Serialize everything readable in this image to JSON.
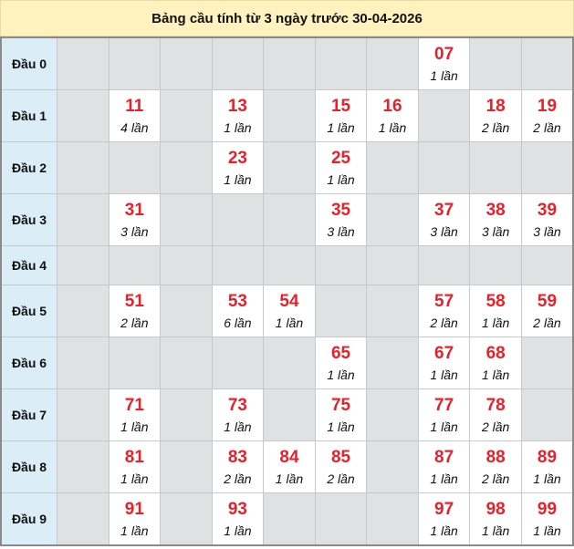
{
  "title": "Bảng cầu tính từ 3 ngày trước 30-04-2026",
  "colors": {
    "number": "#e8202a",
    "label_bg": "#dbeef8",
    "empty_bg": "#e0e1e3",
    "title_bg": "#fff2bf"
  },
  "rows": [
    {
      "label": "Đầu 0",
      "cells": [
        null,
        null,
        null,
        null,
        null,
        null,
        null,
        {
          "num": "07",
          "count": "1 lần"
        },
        null,
        null
      ]
    },
    {
      "label": "Đầu 1",
      "cells": [
        null,
        {
          "num": "11",
          "count": "4 lần"
        },
        null,
        {
          "num": "13",
          "count": "1 lần"
        },
        null,
        {
          "num": "15",
          "count": "1 lần"
        },
        {
          "num": "16",
          "count": "1 lần"
        },
        null,
        {
          "num": "18",
          "count": "2 lần"
        },
        {
          "num": "19",
          "count": "2 lần"
        }
      ]
    },
    {
      "label": "Đầu 2",
      "cells": [
        null,
        null,
        null,
        {
          "num": "23",
          "count": "1 lần"
        },
        null,
        {
          "num": "25",
          "count": "1 lần"
        },
        null,
        null,
        null,
        null
      ]
    },
    {
      "label": "Đầu 3",
      "cells": [
        null,
        {
          "num": "31",
          "count": "3 lần"
        },
        null,
        null,
        null,
        {
          "num": "35",
          "count": "3 lần"
        },
        null,
        {
          "num": "37",
          "count": "3 lần"
        },
        {
          "num": "38",
          "count": "3 lần"
        },
        {
          "num": "39",
          "count": "3 lần"
        }
      ]
    },
    {
      "label": "Đầu 4",
      "cells": [
        null,
        null,
        null,
        null,
        null,
        null,
        null,
        null,
        null,
        null
      ]
    },
    {
      "label": "Đầu 5",
      "cells": [
        null,
        {
          "num": "51",
          "count": "2 lần"
        },
        null,
        {
          "num": "53",
          "count": "6 lần"
        },
        {
          "num": "54",
          "count": "1 lần"
        },
        null,
        null,
        {
          "num": "57",
          "count": "2 lần"
        },
        {
          "num": "58",
          "count": "1 lần"
        },
        {
          "num": "59",
          "count": "2 lần"
        }
      ]
    },
    {
      "label": "Đầu 6",
      "cells": [
        null,
        null,
        null,
        null,
        null,
        {
          "num": "65",
          "count": "1 lần"
        },
        null,
        {
          "num": "67",
          "count": "1 lần"
        },
        {
          "num": "68",
          "count": "1 lần"
        },
        null
      ]
    },
    {
      "label": "Đầu 7",
      "cells": [
        null,
        {
          "num": "71",
          "count": "1 lần"
        },
        null,
        {
          "num": "73",
          "count": "1 lần"
        },
        null,
        {
          "num": "75",
          "count": "1 lần"
        },
        null,
        {
          "num": "77",
          "count": "1 lần"
        },
        {
          "num": "78",
          "count": "2 lần"
        },
        null
      ]
    },
    {
      "label": "Đầu 8",
      "cells": [
        null,
        {
          "num": "81",
          "count": "1 lần"
        },
        null,
        {
          "num": "83",
          "count": "2 lần"
        },
        {
          "num": "84",
          "count": "1 lần"
        },
        {
          "num": "85",
          "count": "2 lần"
        },
        null,
        {
          "num": "87",
          "count": "1 lần"
        },
        {
          "num": "88",
          "count": "2 lần"
        },
        {
          "num": "89",
          "count": "1 lần"
        }
      ]
    },
    {
      "label": "Đầu 9",
      "cells": [
        null,
        {
          "num": "91",
          "count": "1 lần"
        },
        null,
        {
          "num": "93",
          "count": "1 lần"
        },
        null,
        null,
        null,
        {
          "num": "97",
          "count": "1 lần"
        },
        {
          "num": "98",
          "count": "1 lần"
        },
        {
          "num": "99",
          "count": "1 lần"
        }
      ]
    }
  ]
}
